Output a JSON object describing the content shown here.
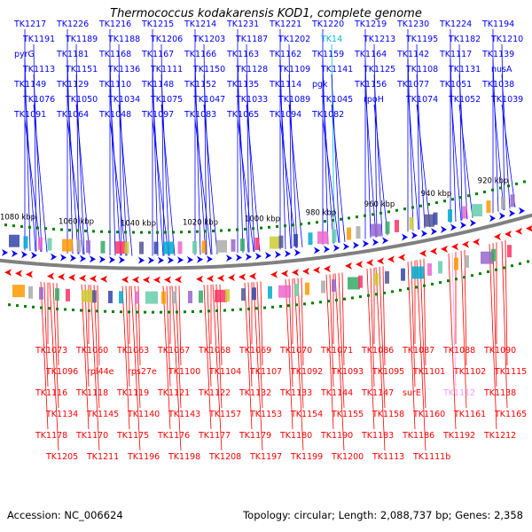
{
  "title": "Thermococcus kodakarensis KOD1, complete genome",
  "footer": {
    "accession": "Accession: NC_006624",
    "summary": "Topology: circular; Length: 2,088,737 bp; Genes: 2,358"
  },
  "colors": {
    "forward_strand": "#0000ff",
    "reverse_strand": "#ff0000",
    "backbone": "#808080",
    "tick": "#008000",
    "highlight_forward": "#00bbdd",
    "highlight_reverse": "#ff99ff"
  },
  "scale_labels": [
    "1080 kbp",
    "1060 kbp",
    "1040 kbp",
    "1020 kbp",
    "1000 kbp",
    "980 kbp",
    "960 kbp",
    "940 kbp",
    "920 kbp"
  ],
  "top_labels": [
    "TK1217",
    "TK1226",
    "TK1216",
    "TK1215",
    "TK1214",
    "TK1231",
    "TK1221",
    "TK1220",
    "TK1219",
    "TK1230",
    "TK1224",
    "TK1194",
    "TK1191",
    "TK1189",
    "TK1188",
    "TK1206",
    "TK1203",
    "TK1187",
    "TK1202",
    "TK14",
    "TK1213",
    "TK1195",
    "TK1182",
    "TK1210",
    "pyrG",
    "TK1181",
    "TK1168",
    "TK1167",
    "TK1166",
    "TK1163",
    "TK1162",
    "TK1159",
    "TK1164",
    "TK1142",
    "TK1117",
    "TK1139",
    "TK1113",
    "TK1151",
    "TK1136",
    "TK1111",
    "TK1150",
    "TK1128",
    "TK1109",
    "TK1141",
    "TK1125",
    "TK1108",
    "TK1131",
    "nusA",
    "TK1149",
    "TK1129",
    "TK1110",
    "TK1148",
    "TK1152",
    "TK1135",
    "TK1114",
    "pgk",
    "TK1156",
    "TK1077",
    "TK1051",
    "TK1038",
    "TK1076",
    "TK1050",
    "TK1034",
    "TK1075",
    "TK1047",
    "TK1033",
    "TK1089",
    "TK1045",
    "rpoH",
    "TK1074",
    "TK1052",
    "TK1039",
    "TK1091",
    "TK1064",
    "TK1048",
    "TK1097",
    "TK1083",
    "TK1065",
    "TK1094",
    "TK1082"
  ],
  "bottom_labels": [
    "TK1073",
    "TK1060",
    "TK1063",
    "TK1067",
    "TK1068",
    "TK1069",
    "TK1070",
    "TK1071",
    "TK1086",
    "TK1087",
    "TK1088",
    "TK1090",
    "TK1096",
    "rpl44e",
    "rps27e",
    "TK1100",
    "TK1104",
    "TK1107",
    "TK1092",
    "TK1093",
    "TK1095",
    "TK1101",
    "TK1102",
    "TK1115",
    "TK1116",
    "TK1118",
    "TK1119",
    "TK1121",
    "TK1122",
    "TK1132",
    "TK1133",
    "TK1144",
    "TK1147",
    "surE",
    "TK1112",
    "TK1138",
    "TK1134",
    "TK1145",
    "TK1140",
    "TK1143",
    "TK1157",
    "TK1153",
    "TK1154",
    "TK1155",
    "TK1158",
    "TK1160",
    "TK1161",
    "TK1165",
    "TK1178",
    "TK1170",
    "TK1175",
    "TK1176",
    "TK1177",
    "TK1179",
    "TK1180",
    "TK1190",
    "TK1183",
    "TK1186",
    "TK1192",
    "TK1212",
    "TK1205",
    "TK1211",
    "TK1196",
    "TK1198",
    "TK1208",
    "TK1197",
    "TK1199",
    "TK1200",
    "TK1113",
    "TK1111b"
  ]
}
